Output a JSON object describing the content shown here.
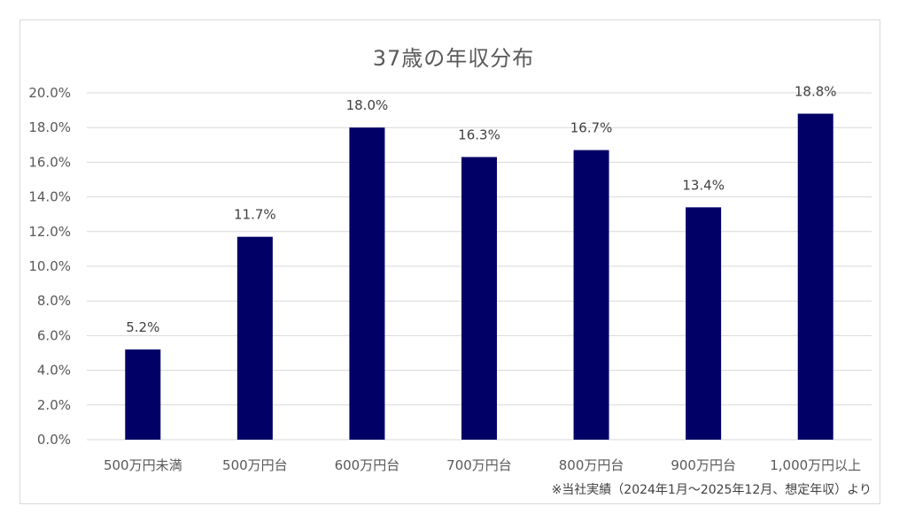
{
  "chart_data": {
    "type": "bar",
    "title": "37歳の年収分布",
    "categories": [
      "500万円未満",
      "500万円台",
      "600万円台",
      "700万円台",
      "800万円台",
      "900万円台",
      "1,000万円以上"
    ],
    "values": [
      5.2,
      11.7,
      18.0,
      16.3,
      16.7,
      13.4,
      18.8
    ],
    "data_labels": [
      "5.2%",
      "11.7%",
      "18.0%",
      "16.3%",
      "16.7%",
      "13.4%",
      "18.8%"
    ],
    "ylim": [
      0,
      20
    ],
    "yticks": [
      "0.0%",
      "2.0%",
      "4.0%",
      "6.0%",
      "8.0%",
      "10.0%",
      "12.0%",
      "14.0%",
      "16.0%",
      "18.0%",
      "20.0%"
    ],
    "grid": true,
    "bar_color": "#000066",
    "grid_color": "#d9d9d9"
  },
  "note": "※当社実績（2024年1月～2025年12月、想定年収）より"
}
